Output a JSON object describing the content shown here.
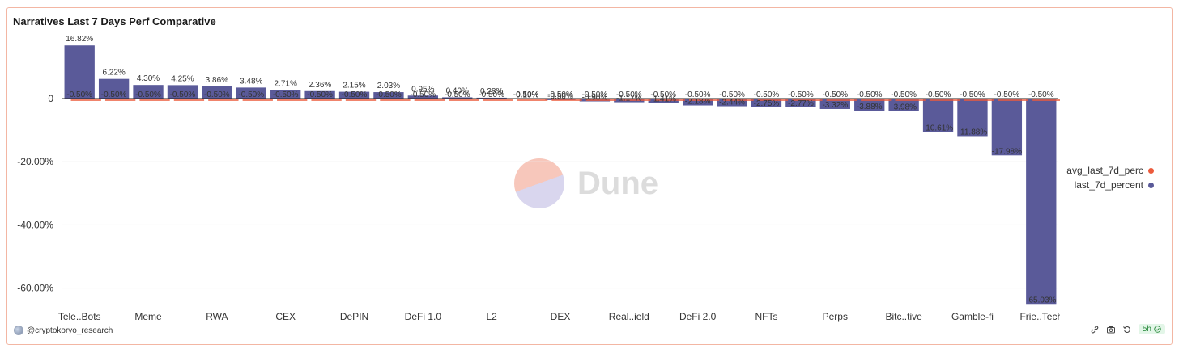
{
  "title": "Narratives Last 7 Days Perf Comparative",
  "chart_data": {
    "type": "bar",
    "title": "Narratives Last 7 Days Perf Comparative",
    "yticks": [
      0,
      -20,
      -40,
      -60
    ],
    "ytick_labels": [
      "0",
      "-20.00%",
      "-40.00%",
      "-60.00%"
    ],
    "ylim": [
      -68,
      18
    ],
    "grid": true,
    "legend_position": "right",
    "bar_labels": [
      "16.82%",
      "6.22%",
      "4.30%",
      "4.25%",
      "3.86%",
      "3.48%",
      "2.71%",
      "2.36%",
      "2.15%",
      "2.03%",
      "0.95%",
      "0.40%",
      "0.28%",
      "-0.19%",
      "-0.50%",
      "-0.90%",
      "-1.17%",
      "-1.41%",
      "-2.18%",
      "-2.44%",
      "-2.75%",
      "-2.77%",
      "-3.32%",
      "-3.88%",
      "-3.98%",
      "-10.61%",
      "-11.88%",
      "-17.98%",
      "-65.03%"
    ],
    "categories": [
      "Tele..Bots",
      "",
      "Meme",
      "",
      "RWA",
      "",
      "CEX",
      "",
      "DePIN",
      "",
      "DeFi 1.0",
      "",
      "L2",
      "",
      "DEX",
      "",
      "Real..ield",
      "",
      "DeFi 2.0",
      "",
      "NFTs",
      "",
      "Perps",
      "",
      "Bitc..tive",
      "",
      "Gamble-fi",
      "",
      "Frie..Tech"
    ],
    "series": [
      {
        "name": "last_7d_percent",
        "color": "#5a5a99",
        "values": [
          16.82,
          6.22,
          4.3,
          4.25,
          3.86,
          3.48,
          2.71,
          2.36,
          2.15,
          2.03,
          0.95,
          0.4,
          0.28,
          -0.19,
          -0.5,
          -0.9,
          -1.17,
          -1.41,
          -2.18,
          -2.44,
          -2.75,
          -2.77,
          -3.32,
          -3.88,
          -3.98,
          -10.61,
          -11.88,
          -17.98,
          -65.03
        ]
      },
      {
        "name": "avg_last_7d_perc",
        "color": "#ec5b3c",
        "values": [
          -0.5,
          -0.5,
          -0.5,
          -0.5,
          -0.5,
          -0.5,
          -0.5,
          -0.5,
          -0.5,
          -0.5,
          -0.5,
          -0.5,
          -0.5,
          -0.5,
          -0.5,
          -0.5,
          -0.5,
          -0.5,
          -0.5,
          -0.5,
          -0.5,
          -0.5,
          -0.5,
          -0.5,
          -0.5,
          -0.5,
          -0.5,
          -0.5,
          -0.5
        ],
        "label": "-0.50%"
      }
    ]
  },
  "watermark": "Dune",
  "footer": {
    "author": "@cryptokoryo_research",
    "badge": "5h"
  }
}
